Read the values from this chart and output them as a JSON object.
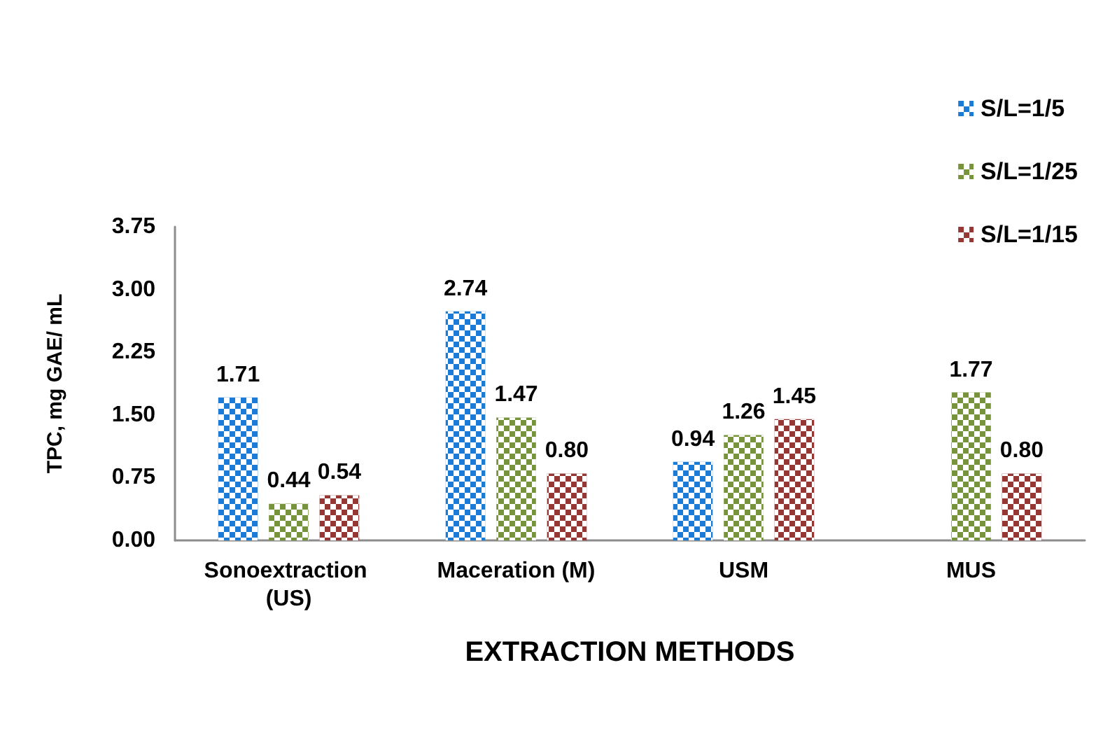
{
  "chart_data": {
    "type": "bar",
    "xlabel": "EXTRACTION METHODS",
    "ylabel": "TPC, mg GAE/ mL",
    "categories": [
      "Sonoextraction (US)",
      "Maceration (M)",
      "USM",
      "MUS"
    ],
    "series": [
      {
        "name": "S/L=1/5",
        "color": "#1c7cd5",
        "values": [
          1.71,
          2.74,
          0.94,
          null
        ],
        "value_labels": [
          "1.71",
          "2.74",
          "0.94",
          null
        ]
      },
      {
        "name": "S/L=1/25",
        "color": "#77933c",
        "values": [
          0.44,
          1.47,
          1.26,
          1.77
        ],
        "value_labels": [
          "0.44",
          "1.47",
          "1.26",
          "1.77"
        ]
      },
      {
        "name": "S/L=1/15",
        "color": "#953735",
        "values": [
          0.54,
          0.8,
          1.45,
          0.8
        ],
        "value_labels": [
          "0.54",
          "0.80",
          "1.45",
          "0.80"
        ]
      }
    ],
    "ylim": [
      0,
      3.75
    ],
    "yticks": [
      {
        "value": 0,
        "label": "0.00"
      },
      0.75,
      {
        "value": 1.5,
        "label": "1.50"
      },
      2.25,
      {
        "value": 3,
        "label": "3.00"
      },
      3.75
    ],
    "grid": false,
    "legend": "top right"
  }
}
